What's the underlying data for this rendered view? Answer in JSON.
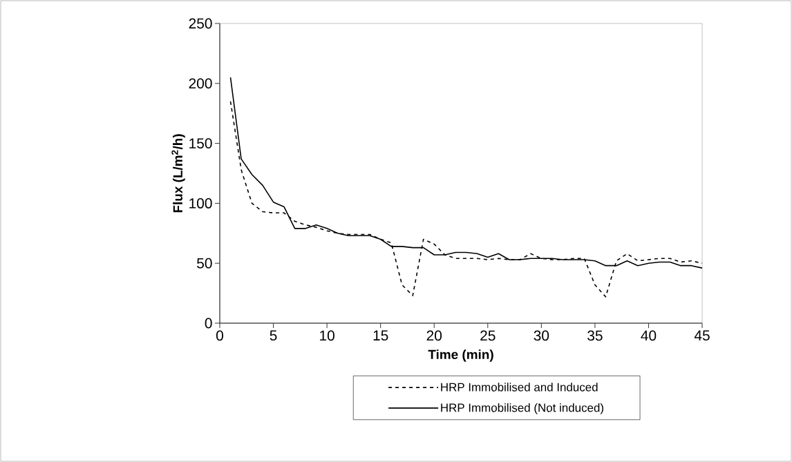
{
  "chart_data": {
    "type": "line",
    "xlabel": "Time (min)",
    "ylabel": "Flux (L/m$^{2}$/h)",
    "x": [
      1,
      2,
      3,
      4,
      5,
      6,
      7,
      8,
      9,
      10,
      11,
      12,
      13,
      14,
      15,
      16,
      17,
      18,
      19,
      20,
      21,
      22,
      23,
      24,
      25,
      26,
      27,
      28,
      29,
      30,
      31,
      32,
      33,
      34,
      35,
      36,
      37,
      38,
      39,
      40,
      41,
      42,
      43,
      44,
      45
    ],
    "series": [
      {
        "name": "HRP Immobilised and Induced",
        "color": "#000000",
        "line_style": "dashed",
        "values": [
          185,
          128,
          100,
          93,
          92,
          92,
          85,
          82,
          80,
          77,
          75,
          74,
          74,
          74,
          70,
          67,
          32,
          23,
          70,
          66,
          57,
          54,
          54,
          54,
          53,
          54,
          53,
          53,
          58,
          54,
          53,
          53,
          54,
          54,
          32,
          22,
          52,
          58,
          52,
          53,
          54,
          54,
          51,
          52,
          50
        ]
      },
      {
        "name": "HRP Immobilised (Not induced)",
        "color": "#000000",
        "line_style": "solid",
        "values": [
          205,
          137,
          124,
          115,
          101,
          97,
          79,
          79,
          82,
          79,
          75,
          73,
          73,
          73,
          70,
          64,
          64,
          63,
          63,
          57,
          57,
          59,
          59,
          58,
          55,
          58,
          53,
          53,
          54,
          54,
          54,
          53,
          53,
          53,
          52,
          48,
          48,
          52,
          48,
          50,
          51,
          51,
          48,
          48,
          46
        ]
      }
    ],
    "xlim": [
      0,
      45
    ],
    "xticks": [
      0,
      5,
      10,
      15,
      20,
      25,
      30,
      35,
      40,
      45
    ],
    "ylim": [
      0,
      250
    ],
    "yticks": [
      0,
      50,
      100,
      150,
      200,
      250
    ],
    "grid": false,
    "legend": "bottom"
  }
}
